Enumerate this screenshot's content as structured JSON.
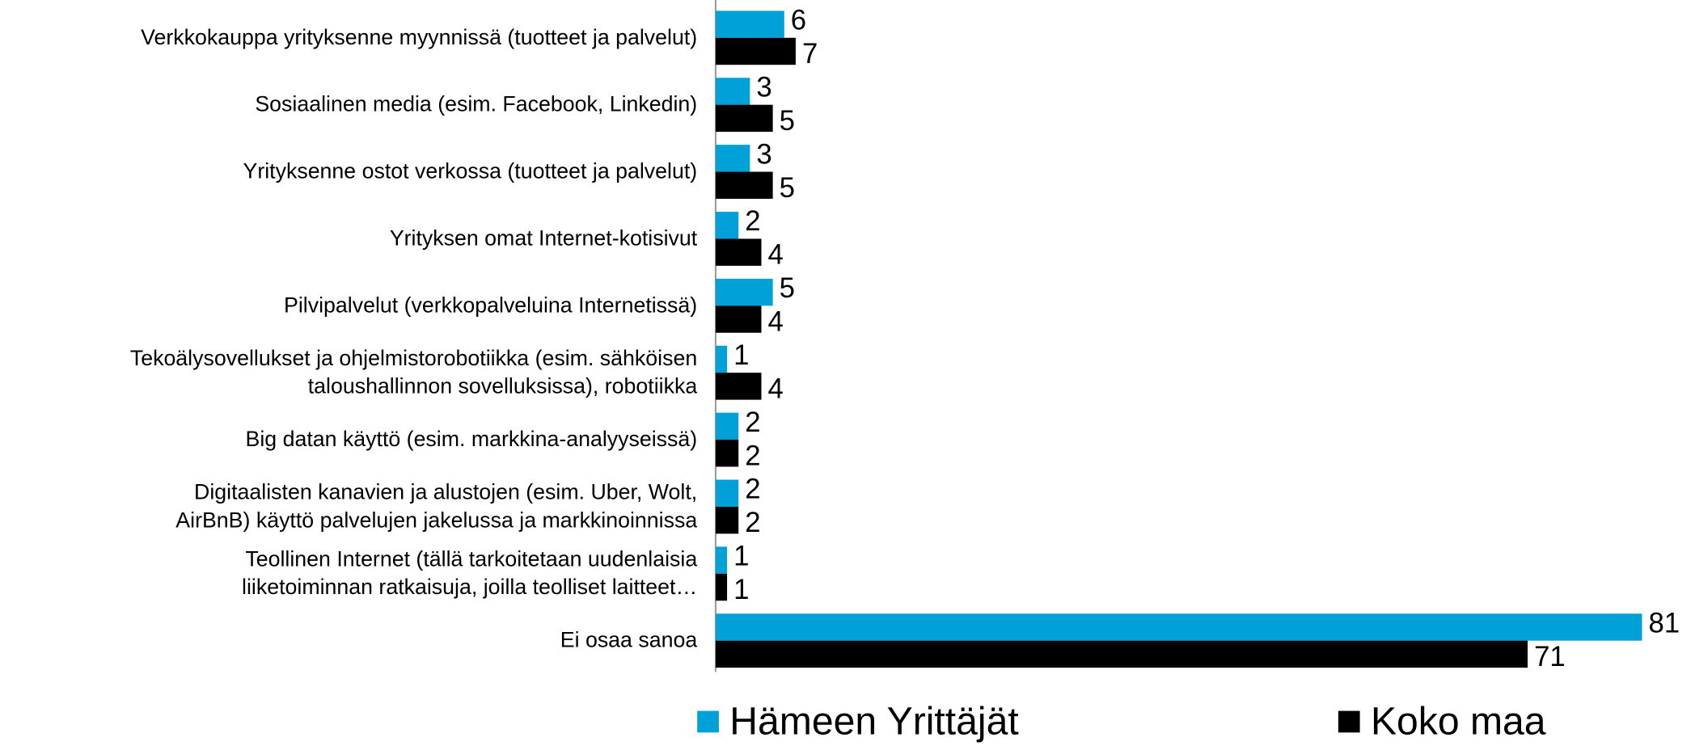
{
  "chart_data": {
    "type": "bar",
    "orientation": "horizontal",
    "categories": [
      "Verkkokauppa yrityksenne myynnissä (tuotteet ja palvelut)",
      "Sosiaalinen media (esim. Facebook, Linkedin)",
      "Yrityksenne ostot verkossa (tuotteet ja palvelut)",
      "Yrityksen omat Internet-kotisivut",
      "Pilvipalvelut  (verkkopalveluina Internetissä)",
      "Tekoälysovellukset ja ohjelmistorobotiikka (esim. sähköisen\ntaloushallinnon sovelluksissa), robotiikka",
      "Big datan käyttö (esim. markkina-analyyseissä)",
      "Digitaalisten kanavien ja alustojen (esim. Uber, Wolt,\nAirBnB) käyttö palvelujen jakelussa ja markkinoinnissa",
      "Teollinen Internet (tällä tarkoitetaan uudenlaisia\nliiketoiminnan ratkaisuja, joilla teolliset laitteet…",
      "Ei osaa sanoa"
    ],
    "series": [
      {
        "name": "Hämeen Yrittäjät",
        "color": "#00a0d8",
        "values": [
          6,
          3,
          3,
          2,
          5,
          1,
          2,
          2,
          1,
          81
        ]
      },
      {
        "name": "Koko maa",
        "color": "#000000",
        "values": [
          7,
          5,
          5,
          4,
          4,
          4,
          2,
          2,
          1,
          71
        ]
      }
    ],
    "xlim": [
      0,
      81
    ],
    "legend": "bottom"
  }
}
